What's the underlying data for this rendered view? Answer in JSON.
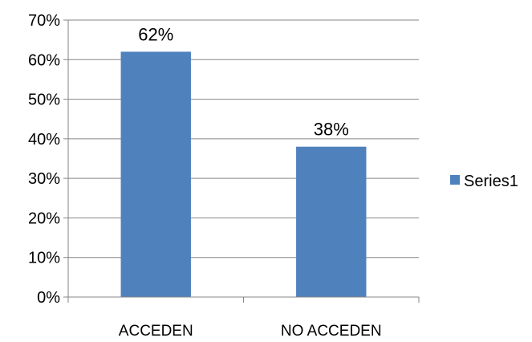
{
  "chart_data": {
    "type": "bar",
    "categories": [
      "ACCEDEN",
      "NO ACCEDEN"
    ],
    "series": [
      {
        "name": "Series1",
        "values": [
          62,
          38
        ],
        "color": "#4F81BD"
      }
    ],
    "data_labels": [
      "62%",
      "38%"
    ],
    "title": "",
    "xlabel": "",
    "ylabel": "",
    "ylim": [
      0,
      70
    ],
    "y_ticks": [
      0,
      10,
      20,
      30,
      40,
      50,
      60,
      70
    ],
    "y_tick_labels": [
      "0%",
      "10%",
      "20%",
      "30%",
      "40%",
      "50%",
      "60%",
      "70%"
    ],
    "grid": true,
    "legend_position": "right"
  }
}
